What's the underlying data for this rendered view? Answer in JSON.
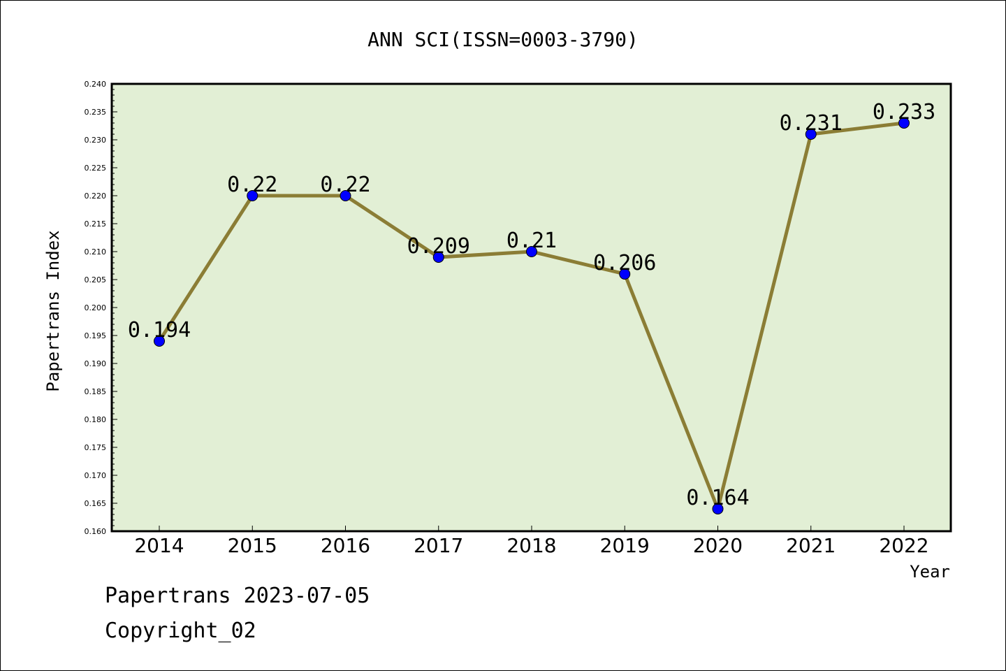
{
  "footer": {
    "line1": "Papertrans 2023-07-05",
    "line2": "Copyright_02"
  },
  "colors": {
    "plot_background": "#e2efd5",
    "line": "#8b7d35",
    "marker": "#0000ff"
  },
  "chart_data": {
    "type": "line",
    "title": "ANN SCI(ISSN=0003-3790)",
    "xlabel": "Year",
    "ylabel": "Papertrans Index",
    "categories": [
      "2014",
      "2015",
      "2016",
      "2017",
      "2018",
      "2019",
      "2020",
      "2021",
      "2022"
    ],
    "values": [
      0.194,
      0.22,
      0.22,
      0.209,
      0.21,
      0.206,
      0.164,
      0.231,
      0.233
    ],
    "data_labels": [
      "0.194",
      "0.22",
      "0.22",
      "0.209",
      "0.21",
      "0.206",
      "0.164",
      "0.231",
      "0.233"
    ],
    "ylim": [
      0.16,
      0.24
    ],
    "yticks": [
      "0.160",
      "0.165",
      "0.170",
      "0.175",
      "0.180",
      "0.185",
      "0.190",
      "0.195",
      "0.200",
      "0.205",
      "0.210",
      "0.215",
      "0.220",
      "0.225",
      "0.230",
      "0.235",
      "0.240"
    ],
    "grid": false,
    "legend": "none"
  }
}
